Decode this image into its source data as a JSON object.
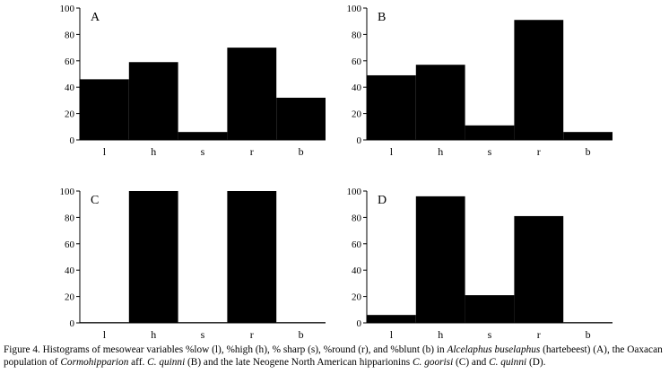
{
  "chart_data": [
    {
      "type": "bar",
      "panel": "A",
      "categories": [
        "l",
        "h",
        "s",
        "r",
        "b"
      ],
      "values": [
        46,
        59,
        6,
        70,
        32
      ],
      "ylim": [
        0,
        100
      ],
      "yticks": [
        "0",
        "20",
        "40",
        "60",
        "80",
        "100"
      ],
      "title": "",
      "xlabel": "",
      "ylabel": "",
      "grid": false,
      "bar_color": "#000000"
    },
    {
      "type": "bar",
      "panel": "B",
      "categories": [
        "l",
        "h",
        "s",
        "r",
        "b"
      ],
      "values": [
        49,
        57,
        11,
        91,
        6
      ],
      "ylim": [
        0,
        100
      ],
      "yticks": [
        "0",
        "20",
        "40",
        "60",
        "80",
        "100"
      ],
      "title": "",
      "xlabel": "",
      "ylabel": "",
      "grid": false,
      "bar_color": "#000000"
    },
    {
      "type": "bar",
      "panel": "C",
      "categories": [
        "l",
        "h",
        "s",
        "r",
        "b"
      ],
      "values": [
        0,
        100,
        0,
        100,
        0
      ],
      "ylim": [
        0,
        100
      ],
      "yticks": [
        "0",
        "20",
        "40",
        "60",
        "80",
        "100"
      ],
      "title": "",
      "xlabel": "",
      "ylabel": "",
      "grid": false,
      "bar_color": "#000000"
    },
    {
      "type": "bar",
      "panel": "D",
      "categories": [
        "l",
        "h",
        "s",
        "r",
        "b"
      ],
      "values": [
        6,
        96,
        21,
        81,
        0
      ],
      "ylim": [
        0,
        100
      ],
      "yticks": [
        "0",
        "20",
        "40",
        "60",
        "80",
        "100"
      ],
      "title": "",
      "xlabel": "",
      "ylabel": "",
      "grid": false,
      "bar_color": "#000000"
    }
  ],
  "caption": {
    "p1": "Figure 4. Histograms of mesowear variables %low (l), %high (h), % sharp (s), %round (r), and %blunt (b) in ",
    "i1": "Alcelaphus buselaphus",
    "p2": " (hartebeest) (A), the Oaxacan population of ",
    "i2": "Cormohipparion",
    "p3": " aff. ",
    "i3": "C. quinni",
    "p4": " (B) and the late Neogene North American hipparionins ",
    "i4": "C. goorisi",
    "p5": " (C) and ",
    "i5": "C. quinni",
    "p6": " (D)."
  }
}
